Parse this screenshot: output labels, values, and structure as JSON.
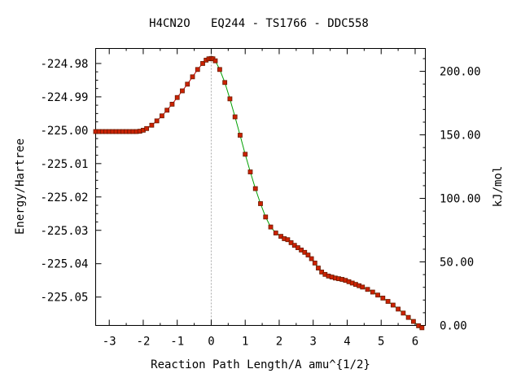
{
  "chart_data": {
    "type": "line",
    "title": "H4CN2O   EQ244 - TS1766 - DDC558",
    "xlabel": "Reaction Path Length/A amu^{1/2}",
    "ylabel": "Energy/Hartree",
    "y2label": "kJ/mol",
    "xlim": [
      -3.4,
      6.3
    ],
    "ylim": [
      -225.0585,
      -224.9755
    ],
    "y2lim": [
      0,
      218
    ],
    "x_ticks": [
      -3,
      -2,
      -1,
      0,
      1,
      2,
      3,
      4,
      5,
      6
    ],
    "x_tick_labels": [
      "-3",
      "-2",
      "-1",
      "0",
      "1",
      "2",
      "3",
      "4",
      "5",
      "6"
    ],
    "y_ticks": [
      -224.98,
      -224.99,
      -225.0,
      -225.01,
      -225.02,
      -225.03,
      -225.04,
      -225.05
    ],
    "y_tick_labels": [
      "-224.98",
      "-224.99",
      "-225.00",
      "-225.01",
      "-225.02",
      "-225.03",
      "-225.04",
      "-225.05"
    ],
    "y2_ticks": [
      0,
      50,
      100,
      150,
      200
    ],
    "y2_tick_labels": [
      "0.00",
      "50.00",
      "100.00",
      "150.00",
      "200.00"
    ],
    "ts_x": 0,
    "colors": {
      "points": "#cc2200",
      "points_edge": "#6b1a00",
      "left_line": "#cc0000",
      "right_line": "#00a000",
      "ts_line": "#999999"
    },
    "series": [
      {
        "x": [
          -3.4,
          -3.3,
          -3.2,
          -3.1,
          -3.0,
          -2.9,
          -2.8,
          -2.7,
          -2.6,
          -2.5,
          -2.4,
          -2.3,
          -2.2,
          -2.1,
          -2.0,
          -1.9,
          -1.75,
          -1.6,
          -1.45,
          -1.3,
          -1.15,
          -1.0,
          -0.85,
          -0.7,
          -0.55,
          -0.4,
          -0.25,
          -0.15,
          -0.07,
          0.0,
          0.05,
          0.12,
          0.25,
          0.4,
          0.55,
          0.7,
          0.85,
          1.0,
          1.15,
          1.3,
          1.45,
          1.6,
          1.75,
          1.9,
          2.05,
          2.15,
          2.25,
          2.35,
          2.45,
          2.55,
          2.65,
          2.75,
          2.85,
          2.95,
          3.05,
          3.15,
          3.25,
          3.35,
          3.45,
          3.55,
          3.65,
          3.75,
          3.85,
          3.95,
          4.05,
          4.15,
          4.25,
          4.35,
          4.45,
          4.6,
          4.75,
          4.9,
          5.05,
          5.2,
          5.35,
          5.5,
          5.65,
          5.8,
          5.95,
          6.1,
          6.2
        ],
        "y": [
          -225.0004,
          -225.0004,
          -225.0004,
          -225.0004,
          -225.0004,
          -225.0004,
          -225.0004,
          -225.0004,
          -225.0004,
          -225.0004,
          -225.0004,
          -225.0004,
          -225.0004,
          -225.0003,
          -225.0,
          -224.9995,
          -224.9985,
          -224.9972,
          -224.9957,
          -224.994,
          -224.9922,
          -224.9902,
          -224.9882,
          -224.9862,
          -224.984,
          -224.9818,
          -224.98,
          -224.979,
          -224.9786,
          -224.9785,
          -224.9786,
          -224.9792,
          -224.9818,
          -224.9857,
          -224.9906,
          -224.996,
          -225.0015,
          -225.0072,
          -225.0125,
          -225.0175,
          -225.022,
          -225.026,
          -225.029,
          -225.0308,
          -225.0318,
          -225.0325,
          -225.0328,
          -225.0337,
          -225.0345,
          -225.0352,
          -225.0359,
          -225.0366,
          -225.0374,
          -225.0385,
          -225.0398,
          -225.0413,
          -225.0425,
          -225.0432,
          -225.0437,
          -225.044,
          -225.0443,
          -225.0445,
          -225.0447,
          -225.045,
          -225.0454,
          -225.0458,
          -225.0462,
          -225.0466,
          -225.047,
          -225.0477,
          -225.0485,
          -225.0494,
          -225.0503,
          -225.0513,
          -225.0524,
          -225.0536,
          -225.0548,
          -225.0561,
          -225.0573,
          -225.0586,
          -225.0592
        ]
      }
    ]
  }
}
